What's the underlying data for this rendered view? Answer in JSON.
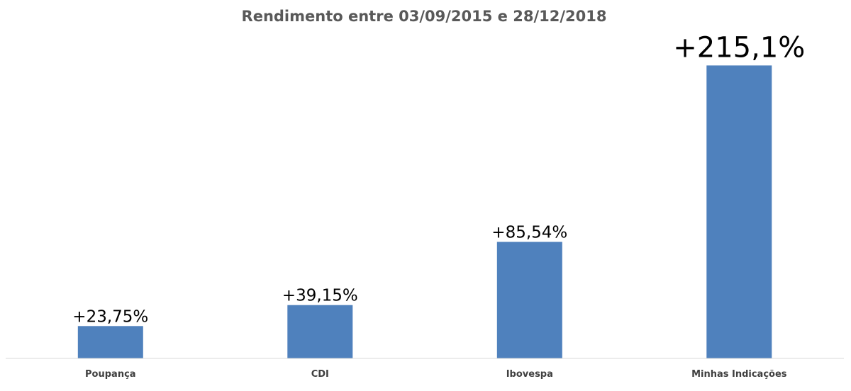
{
  "chart_data": {
    "type": "bar",
    "title": "Rendimento entre 03/09/2015 e 28/12/2018",
    "categories": [
      "Poupança",
      "CDI",
      "Ibovespa",
      "Minhas Indicações"
    ],
    "values": [
      23.75,
      39.15,
      85.54,
      215.1
    ],
    "data_labels": [
      "+23,75%",
      "+39,15%",
      "+85,54%",
      "+215,1%"
    ],
    "ylim": [
      0,
      233
    ],
    "grid": false,
    "legend": "none",
    "bar_color": "#4f81bd",
    "axis_color": "#d9d9d9"
  }
}
